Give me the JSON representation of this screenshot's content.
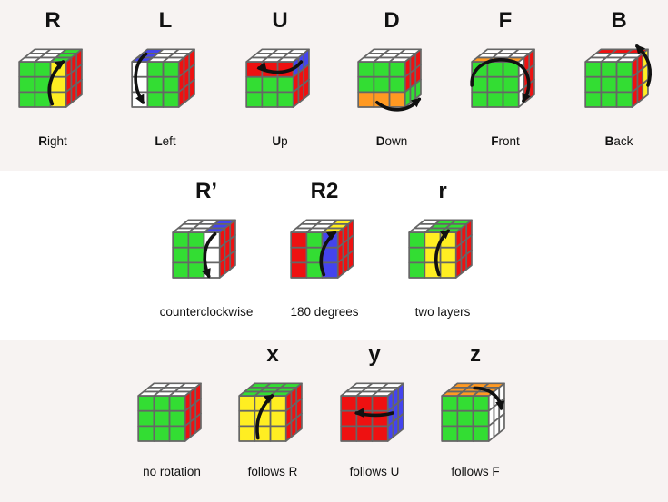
{
  "colors": {
    "W": "#ffffff",
    "G": "#33dd33",
    "R": "#ee1111",
    "B": "#4444ee",
    "Y": "#ffee22",
    "O": "#ff9922",
    "edge": "#666666",
    "arrow": "#111111"
  },
  "rows": [
    {
      "moves": [
        {
          "notation": "R",
          "caption_bold": "R",
          "caption_rest": "ight",
          "icon": "cube-with-arrow-icon",
          "top": [
            "W",
            "W",
            "G",
            "W",
            "W",
            "G",
            "W",
            "W",
            "G"
          ],
          "front": [
            "G",
            "G",
            "Y",
            "G",
            "G",
            "Y",
            "G",
            "G",
            "Y"
          ],
          "side": [
            "R",
            "R",
            "R",
            "R",
            "R",
            "R",
            "R",
            "R",
            "R"
          ],
          "arrow": "front-right-col-up"
        },
        {
          "notation": "L",
          "caption_bold": "L",
          "caption_rest": "eft",
          "icon": "cube-with-arrow-icon",
          "top": [
            "B",
            "W",
            "W",
            "B",
            "W",
            "W",
            "B",
            "W",
            "W"
          ],
          "front": [
            "W",
            "G",
            "G",
            "W",
            "G",
            "G",
            "W",
            "G",
            "G"
          ],
          "side": [
            "R",
            "R",
            "R",
            "R",
            "R",
            "R",
            "R",
            "R",
            "R"
          ],
          "arrow": "front-left-col-down"
        },
        {
          "notation": "U",
          "caption_bold": "U",
          "caption_rest": "p",
          "icon": "cube-with-arrow-icon",
          "top": [
            "W",
            "W",
            "W",
            "W",
            "W",
            "W",
            "W",
            "W",
            "W"
          ],
          "front": [
            "R",
            "R",
            "R",
            "G",
            "G",
            "G",
            "G",
            "G",
            "G"
          ],
          "side": [
            "B",
            "B",
            "B",
            "R",
            "R",
            "R",
            "R",
            "R",
            "R"
          ],
          "arrow": "front-top-row-left"
        },
        {
          "notation": "D",
          "caption_bold": "D",
          "caption_rest": "own",
          "icon": "cube-with-arrow-icon",
          "top": [
            "W",
            "W",
            "W",
            "W",
            "W",
            "W",
            "W",
            "W",
            "W"
          ],
          "front": [
            "G",
            "G",
            "G",
            "G",
            "G",
            "G",
            "O",
            "O",
            "O"
          ],
          "side": [
            "R",
            "R",
            "R",
            "R",
            "R",
            "R",
            "G",
            "G",
            "G"
          ],
          "arrow": "front-bottom-row-right"
        },
        {
          "notation": "F",
          "caption_bold": "F",
          "caption_rest": "ront",
          "icon": "cube-with-arrow-icon",
          "top": [
            "W",
            "W",
            "W",
            "W",
            "W",
            "W",
            "O",
            "O",
            "O"
          ],
          "front": [
            "G",
            "G",
            "G",
            "G",
            "G",
            "G",
            "G",
            "G",
            "G"
          ],
          "side": [
            "W",
            "R",
            "R",
            "W",
            "R",
            "R",
            "W",
            "R",
            "R"
          ],
          "arrow": "front-face-clockwise"
        },
        {
          "notation": "B",
          "caption_bold": "B",
          "caption_rest": "ack",
          "icon": "cube-with-arrow-icon",
          "top": [
            "R",
            "R",
            "R",
            "W",
            "W",
            "W",
            "W",
            "W",
            "W"
          ],
          "front": [
            "G",
            "G",
            "G",
            "G",
            "G",
            "G",
            "G",
            "G",
            "G"
          ],
          "side": [
            "R",
            "R",
            "Y",
            "R",
            "R",
            "Y",
            "R",
            "R",
            "Y"
          ],
          "arrow": "back-layer-up"
        }
      ]
    },
    {
      "moves": [
        {
          "notation": "R’",
          "caption_bold": "",
          "caption_rest": "counterclockwise",
          "icon": "cube-with-arrow-icon",
          "top": [
            "W",
            "W",
            "B",
            "W",
            "W",
            "B",
            "W",
            "W",
            "B"
          ],
          "front": [
            "G",
            "G",
            "W",
            "G",
            "G",
            "W",
            "G",
            "G",
            "W"
          ],
          "side": [
            "R",
            "R",
            "R",
            "R",
            "R",
            "R",
            "R",
            "R",
            "R"
          ],
          "arrow": "front-right-col-down"
        },
        {
          "notation": "R2",
          "caption_bold": "",
          "caption_rest": "180 degrees",
          "icon": "cube-with-arrow-icon",
          "top": [
            "W",
            "W",
            "Y",
            "W",
            "W",
            "Y",
            "W",
            "W",
            "Y"
          ],
          "front": [
            "R",
            "G",
            "B",
            "R",
            "G",
            "B",
            "R",
            "G",
            "B"
          ],
          "side": [
            "R",
            "R",
            "R",
            "R",
            "R",
            "R",
            "R",
            "R",
            "R"
          ],
          "arrow": "front-right-col-up"
        },
        {
          "notation": "r",
          "caption_bold": "",
          "caption_rest": "two layers",
          "icon": "cube-with-arrow-icon",
          "top": [
            "W",
            "G",
            "G",
            "W",
            "G",
            "G",
            "W",
            "G",
            "G"
          ],
          "front": [
            "G",
            "Y",
            "Y",
            "G",
            "Y",
            "Y",
            "G",
            "Y",
            "Y"
          ],
          "side": [
            "R",
            "R",
            "R",
            "R",
            "R",
            "R",
            "R",
            "R",
            "R"
          ],
          "arrow": "front-two-cols-up"
        }
      ]
    },
    {
      "moves": [
        {
          "notation": "",
          "caption_bold": "",
          "caption_rest": "no rotation",
          "icon": "cube-icon",
          "top": [
            "W",
            "W",
            "W",
            "W",
            "W",
            "W",
            "W",
            "W",
            "W"
          ],
          "front": [
            "G",
            "G",
            "G",
            "G",
            "G",
            "G",
            "G",
            "G",
            "G"
          ],
          "side": [
            "R",
            "R",
            "R",
            "R",
            "R",
            "R",
            "R",
            "R",
            "R"
          ],
          "arrow": "none"
        },
        {
          "notation": "x",
          "caption_bold": "",
          "caption_rest": "follows R",
          "icon": "cube-with-arrow-icon",
          "top": [
            "G",
            "G",
            "G",
            "G",
            "G",
            "G",
            "G",
            "G",
            "G"
          ],
          "front": [
            "Y",
            "Y",
            "Y",
            "Y",
            "Y",
            "Y",
            "Y",
            "Y",
            "Y"
          ],
          "side": [
            "R",
            "R",
            "R",
            "R",
            "R",
            "R",
            "R",
            "R",
            "R"
          ],
          "arrow": "front-center-up"
        },
        {
          "notation": "y",
          "caption_bold": "",
          "caption_rest": "follows U",
          "icon": "cube-with-arrow-icon",
          "top": [
            "W",
            "W",
            "W",
            "W",
            "W",
            "W",
            "W",
            "W",
            "W"
          ],
          "front": [
            "R",
            "R",
            "R",
            "R",
            "R",
            "R",
            "R",
            "R",
            "R"
          ],
          "side": [
            "B",
            "B",
            "B",
            "B",
            "B",
            "B",
            "B",
            "B",
            "B"
          ],
          "arrow": "front-middle-left"
        },
        {
          "notation": "z",
          "caption_bold": "",
          "caption_rest": "follows F",
          "icon": "cube-with-arrow-icon",
          "top": [
            "O",
            "O",
            "O",
            "O",
            "O",
            "O",
            "O",
            "O",
            "O"
          ],
          "front": [
            "G",
            "G",
            "G",
            "G",
            "G",
            "G",
            "G",
            "G",
            "G"
          ],
          "side": [
            "W",
            "W",
            "W",
            "W",
            "W",
            "W",
            "W",
            "W",
            "W"
          ],
          "arrow": "top-right-curl"
        }
      ]
    }
  ]
}
